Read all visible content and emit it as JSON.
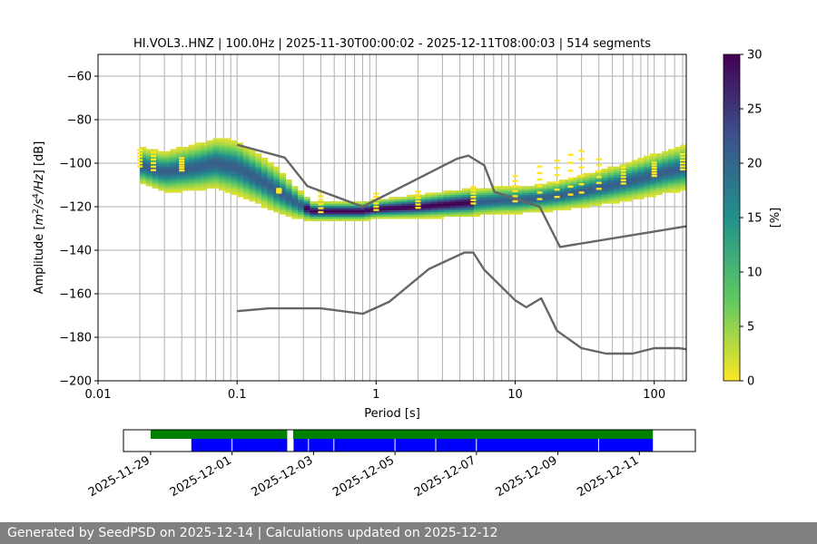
{
  "chart_data": [
    {
      "type": "heatmap",
      "title": "HI.VOL3..HNZ | 100.0Hz | 2025-11-30T00:00:02 - 2025-12-11T08:00:03 | 514 segments",
      "xlabel": "Period [s]",
      "ylabel": "Amplitude [m²/s⁴/Hz] [dB]",
      "xscale": "log",
      "xlim": [
        0.01,
        170
      ],
      "ylim": [
        -200,
        -50
      ],
      "x_ticks": [
        "0.01",
        "0.1",
        "1",
        "10",
        "100"
      ],
      "y_ticks": [
        "−60",
        "−80",
        "−100",
        "−120",
        "−140",
        "−160",
        "−180",
        "−200"
      ],
      "grid_periods": [
        0.02,
        0.03,
        0.04,
        0.05,
        0.06,
        0.07,
        0.08,
        0.09,
        0.1,
        0.2,
        0.3,
        0.4,
        0.5,
        0.6,
        0.7,
        0.8,
        0.9,
        1,
        2,
        3,
        4,
        5,
        6,
        7,
        8,
        9,
        10,
        20,
        30,
        40,
        50,
        60,
        70,
        80,
        90,
        100,
        120,
        140,
        160
      ],
      "grid": "on",
      "colorbar": {
        "label": "[%]",
        "range": [
          0,
          30
        ],
        "ticks": [
          "0",
          "5",
          "10",
          "15",
          "20",
          "25",
          "30"
        ],
        "colormap": "viridis_r"
      },
      "psd_mode": [
        [
          0.02,
          -101
        ],
        [
          0.03,
          -104
        ],
        [
          0.05,
          -102
        ],
        [
          0.07,
          -100
        ],
        [
          0.1,
          -102
        ],
        [
          0.15,
          -108
        ],
        [
          0.2,
          -113
        ],
        [
          0.25,
          -117
        ],
        [
          0.3,
          -120
        ],
        [
          0.35,
          -122
        ],
        [
          0.5,
          -122
        ],
        [
          0.8,
          -122
        ],
        [
          1,
          -121
        ],
        [
          2,
          -120
        ],
        [
          3,
          -119
        ],
        [
          5,
          -118
        ],
        [
          8,
          -117
        ],
        [
          10,
          -117
        ],
        [
          15,
          -116
        ],
        [
          20,
          -115
        ],
        [
          30,
          -113
        ],
        [
          50,
          -110
        ],
        [
          80,
          -107
        ],
        [
          120,
          -104
        ],
        [
          170,
          -102
        ]
      ],
      "psd_spread": [
        [
          0.02,
          4
        ],
        [
          0.1,
          6
        ],
        [
          0.2,
          5
        ],
        [
          0.35,
          2
        ],
        [
          1,
          2
        ],
        [
          5,
          3
        ],
        [
          15,
          3
        ],
        [
          170,
          5
        ]
      ],
      "outlier_scatter": [
        [
          0.02,
          -92
        ],
        [
          0.025,
          -93
        ],
        [
          0.04,
          -96
        ],
        [
          0.2,
          -111
        ],
        [
          0.4,
          -111
        ],
        [
          1,
          -112
        ],
        [
          2,
          -111
        ],
        [
          5,
          -109
        ],
        [
          10,
          -103
        ],
        [
          15,
          -98
        ],
        [
          20,
          -95
        ],
        [
          25,
          -92
        ],
        [
          30,
          -90
        ],
        [
          40,
          -95
        ],
        [
          60,
          -100
        ],
        [
          100,
          -98
        ],
        [
          160,
          -94
        ]
      ],
      "noise_model_high": [
        [
          0.1,
          -91.5
        ],
        [
          0.22,
          -97.4
        ],
        [
          0.32,
          -110.5
        ],
        [
          0.8,
          -120
        ],
        [
          3.8,
          -98
        ],
        [
          4.6,
          -96.5
        ],
        [
          6,
          -101
        ],
        [
          7.1,
          -113.2
        ],
        [
          15,
          -120
        ],
        [
          21,
          -138.5
        ],
        [
          170,
          -129
        ]
      ],
      "noise_model_low": [
        [
          0.1,
          -168
        ],
        [
          0.17,
          -166.7
        ],
        [
          0.4,
          -166.7
        ],
        [
          0.8,
          -169.2
        ],
        [
          1.24,
          -163.7
        ],
        [
          2.4,
          -148.6
        ],
        [
          4.3,
          -141.1
        ],
        [
          5,
          -141.1
        ],
        [
          6,
          -149
        ],
        [
          10,
          -163
        ],
        [
          12,
          -166.2
        ],
        [
          15.4,
          -162.1
        ],
        [
          20,
          -177
        ],
        [
          30,
          -185
        ],
        [
          45,
          -187.5
        ],
        [
          70,
          -187.5
        ],
        [
          100,
          -185
        ],
        [
          150,
          -185
        ],
        [
          170,
          -185.5
        ]
      ]
    },
    {
      "type": "timeline",
      "x_ticks": [
        "2025-11-29",
        "2025-12-01",
        "2025-12-03",
        "2025-12-05",
        "2025-12-07",
        "2025-12-09",
        "2025-12-11"
      ],
      "xlim": [
        "2025-11-28T08:00",
        "2025-12-12T09:00"
      ],
      "data_available": [
        [
          "2025-11-29T00:00",
          "2025-12-02T08:30"
        ],
        [
          "2025-12-02T12:00",
          "2025-12-11T08:00"
        ]
      ],
      "psd_segments": [
        [
          "2025-11-30T00:00",
          "2025-12-02T08:30"
        ],
        [
          "2025-12-02T12:00",
          "2025-12-11T08:00"
        ]
      ],
      "segment_gaps": [
        "2025-12-01T00:00",
        "2025-12-02T12:00",
        "2025-12-02T21:00",
        "2025-12-03T12:00",
        "2025-12-05T00:00",
        "2025-12-06T00:00",
        "2025-12-07T00:00",
        "2025-12-10T00:00"
      ],
      "colors": {
        "available": "#008000",
        "segments": "#0000ff"
      }
    }
  ],
  "footer": "Generated by SeedPSD on 2025-12-14 | Calculations updated on 2025-12-12"
}
